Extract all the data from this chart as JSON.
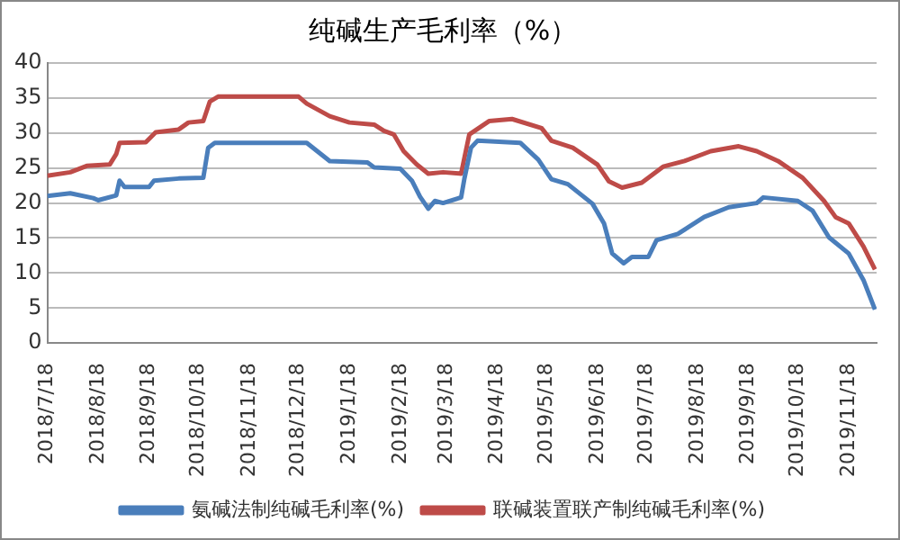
{
  "chart_data": {
    "type": "line",
    "title": "纯碱生产毛利率（%）",
    "grid": "y",
    "legend": "bottom",
    "marker": "none",
    "line_style": "solid",
    "xlim": [
      "2018-07-18",
      "2019-12-05"
    ],
    "xticks": [
      {
        "value": "2018-07-18",
        "label": "2018/7/18"
      },
      {
        "value": "2018-08-18",
        "label": "2018/8/18"
      },
      {
        "value": "2018-09-18",
        "label": "2018/9/18"
      },
      {
        "value": "2018-10-18",
        "label": "2018/10/18"
      },
      {
        "value": "2018-11-18",
        "label": "2018/11/18"
      },
      {
        "value": "2018-12-18",
        "label": "2018/12/18"
      },
      {
        "value": "2019-01-18",
        "label": "2019/1/18"
      },
      {
        "value": "2019-02-18",
        "label": "2019/2/18"
      },
      {
        "value": "2019-03-18",
        "label": "2019/3/18"
      },
      {
        "value": "2019-04-18",
        "label": "2019/4/18"
      },
      {
        "value": "2019-05-18",
        "label": "2019/5/18"
      },
      {
        "value": "2019-06-18",
        "label": "2019/6/18"
      },
      {
        "value": "2019-07-18",
        "label": "2019/7/18"
      },
      {
        "value": "2019-08-18",
        "label": "2019/8/18"
      },
      {
        "value": "2019-09-18",
        "label": "2019/9/18"
      },
      {
        "value": "2019-10-18",
        "label": "2019/10/18"
      },
      {
        "value": "2019-11-18",
        "label": "2019/11/18"
      }
    ],
    "ylim": [
      0,
      40
    ],
    "yticks": [
      0,
      5,
      10,
      15,
      20,
      25,
      30,
      35,
      40
    ],
    "series": [
      {
        "name": "氨碱法制纯碱毛利率(%)",
        "color": "#4a7ebb",
        "x": [
          "2018-07-18",
          "2018-08-01",
          "2018-08-15",
          "2018-08-18",
          "2018-08-29",
          "2018-08-31",
          "2018-09-03",
          "2018-09-18",
          "2018-09-21",
          "2018-10-06",
          "2018-10-21",
          "2018-10-24",
          "2018-10-28",
          "2018-12-23",
          "2019-01-06",
          "2019-01-29",
          "2019-02-02",
          "2019-02-18",
          "2019-02-25",
          "2019-03-02",
          "2019-03-07",
          "2019-03-11",
          "2019-03-16",
          "2019-03-27",
          "2019-03-29",
          "2019-04-02",
          "2019-04-06",
          "2019-05-02",
          "2019-05-13",
          "2019-05-21",
          "2019-05-31",
          "2019-06-15",
          "2019-06-22",
          "2019-06-27",
          "2019-07-04",
          "2019-07-09",
          "2019-07-19",
          "2019-07-24",
          "2019-08-06",
          "2019-08-22",
          "2019-09-06",
          "2019-09-23",
          "2019-09-27",
          "2019-10-18",
          "2019-10-27",
          "2019-11-06",
          "2019-11-18",
          "2019-11-27",
          "2019-12-04"
        ],
        "values": [
          21,
          21.4,
          20.7,
          20.4,
          21.1,
          23.2,
          22.3,
          22.3,
          23.2,
          23.5,
          23.6,
          27.9,
          28.6,
          28.6,
          26,
          25.8,
          25.1,
          24.9,
          23.2,
          20.9,
          19.2,
          20.3,
          20,
          20.8,
          23.5,
          27.9,
          28.9,
          28.6,
          26.2,
          23.4,
          22.7,
          19.9,
          17.1,
          12.8,
          11.4,
          12.3,
          12.3,
          14.7,
          15.6,
          18,
          19.4,
          20,
          20.8,
          20.3,
          18.9,
          15.1,
          12.8,
          9,
          4.8
        ]
      },
      {
        "name": "联碱装置联产制纯碱毛利率(%)",
        "color": "#be4b48",
        "x": [
          "2018-07-18",
          "2018-08-01",
          "2018-08-11",
          "2018-08-25",
          "2018-08-29",
          "2018-08-31",
          "2018-09-16",
          "2018-09-22",
          "2018-10-06",
          "2018-10-12",
          "2018-10-21",
          "2018-10-25",
          "2018-10-30",
          "2018-12-18",
          "2018-12-23",
          "2019-01-06",
          "2019-01-18",
          "2019-02-02",
          "2019-02-08",
          "2019-02-14",
          "2019-02-20",
          "2019-02-28",
          "2019-03-07",
          "2019-03-16",
          "2019-03-27",
          "2019-04-01",
          "2019-04-13",
          "2019-04-27",
          "2019-05-15",
          "2019-05-21",
          "2019-06-03",
          "2019-06-18",
          "2019-06-25",
          "2019-07-03",
          "2019-07-15",
          "2019-07-28",
          "2019-08-10",
          "2019-08-26",
          "2019-09-12",
          "2019-09-23",
          "2019-10-06",
          "2019-10-21",
          "2019-11-03",
          "2019-11-10",
          "2019-11-18",
          "2019-11-27",
          "2019-12-04"
        ],
        "values": [
          23.9,
          24.4,
          25.3,
          25.5,
          27,
          28.6,
          28.7,
          30.1,
          30.5,
          31.5,
          31.7,
          34.5,
          35.2,
          35.2,
          34.2,
          32.4,
          31.5,
          31.2,
          30.3,
          29.8,
          27.4,
          25.5,
          24.2,
          24.4,
          24.2,
          29.8,
          31.7,
          32,
          30.7,
          28.9,
          27.9,
          25.5,
          23.1,
          22.2,
          22.9,
          25.2,
          26,
          27.4,
          28.1,
          27.4,
          26,
          23.6,
          20.3,
          18,
          17.1,
          13.8,
          10.5
        ]
      }
    ]
  }
}
